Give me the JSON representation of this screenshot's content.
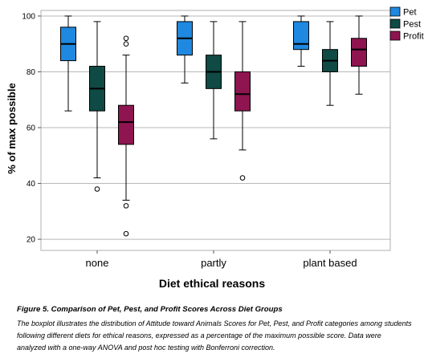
{
  "chart_data": {
    "type": "boxplot",
    "xlabel": "Diet ethical reasons",
    "ylabel": "% of max possible",
    "ylim": [
      16,
      102
    ],
    "yticks": [
      20,
      40,
      60,
      80,
      100
    ],
    "grid": "horizontal",
    "legend_position": "top-right",
    "categories": [
      "none",
      "partly",
      "plant based"
    ],
    "series": [
      {
        "name": "Pet",
        "color": "#1f88e0",
        "boxes": [
          {
            "min": 66,
            "q1": 84,
            "median": 90,
            "q3": 96,
            "max": 100,
            "outliers": []
          },
          {
            "min": 76,
            "q1": 86,
            "median": 92,
            "q3": 98,
            "max": 100,
            "outliers": []
          },
          {
            "min": 82,
            "q1": 88,
            "median": 90,
            "q3": 98,
            "max": 100,
            "outliers": []
          }
        ]
      },
      {
        "name": "Pest",
        "color": "#0f4a45",
        "boxes": [
          {
            "min": 42,
            "q1": 66,
            "median": 74,
            "q3": 82,
            "max": 98,
            "outliers": [
              38
            ]
          },
          {
            "min": 56,
            "q1": 74,
            "median": 80,
            "q3": 86,
            "max": 98,
            "outliers": []
          },
          {
            "min": 68,
            "q1": 80,
            "median": 84,
            "q3": 88,
            "max": 98,
            "outliers": []
          }
        ]
      },
      {
        "name": "Profit",
        "color": "#8e1550",
        "boxes": [
          {
            "min": 34,
            "q1": 54,
            "median": 62,
            "q3": 68,
            "max": 86,
            "outliers": [
              92,
              90,
              32,
              22
            ]
          },
          {
            "min": 52,
            "q1": 66,
            "median": 72,
            "q3": 80,
            "max": 98,
            "outliers": [
              42
            ]
          },
          {
            "min": 72,
            "q1": 82,
            "median": 88,
            "q3": 92,
            "max": 100,
            "outliers": []
          }
        ]
      }
    ]
  },
  "caption": {
    "title": "Figure 5. Comparison of Pet, Pest, and Profit Scores Across Diet Groups",
    "body": "The boxplot illustrates the distribution of Attitude toward Animals Scores for Pet, Pest, and Profit categories among students following different diets for ethical reasons, expressed as a percentage of the maximum possible score. Data were analyzed with a one-way ANOVA and post hoc testing with Bonferroni correction."
  }
}
